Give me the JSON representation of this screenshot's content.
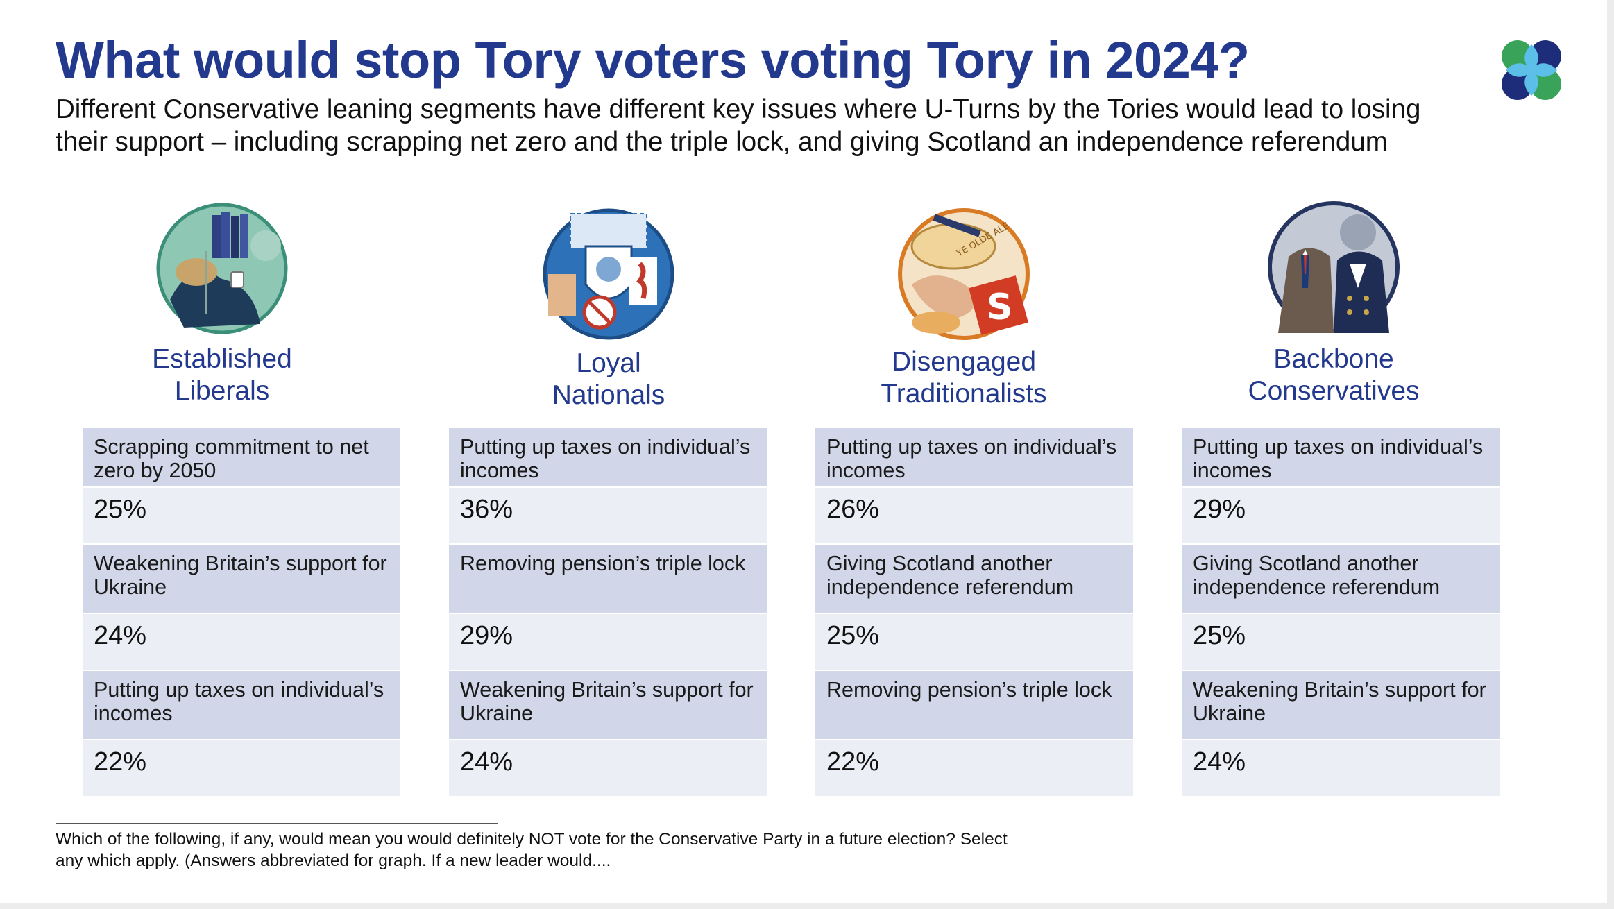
{
  "title": "What would stop Tory voters voting Tory in 2024?",
  "subtitle": "Different Conservative leaning segments have different key issues where U-Turns by the Tories would lead to losing their support – including scrapping net zero and the triple lock, and giving Scotland an independence referendum",
  "logo_icon": "four-petal-logo-icon",
  "colors": {
    "title": "#22398e",
    "issue_row": "#d1d6e8",
    "value_row": "#eceef5"
  },
  "segments": [
    {
      "name_line1": "Established",
      "name_line2": "Liberals",
      "icon": "armchair-reader-illustration",
      "rows": [
        {
          "issue": "Scrapping commitment to net zero by 2050",
          "value": "25%"
        },
        {
          "issue": "Weakening Britain’s support for Ukraine",
          "value": "24%"
        },
        {
          "issue": "Putting up taxes on individual’s incomes",
          "value": "22%"
        }
      ]
    },
    {
      "name_line1": "Loyal",
      "name_line2": "Nationals",
      "icon": "flag-and-shield-illustration",
      "rows": [
        {
          "issue": "Putting up taxes on individual’s incomes",
          "value": "36%"
        },
        {
          "issue": "Removing pension’s triple lock",
          "value": "29%"
        },
        {
          "issue": "Weakening Britain’s support for Ukraine",
          "value": "24%"
        }
      ]
    },
    {
      "name_line1": "Disengaged",
      "name_line2": "Traditionalists",
      "icon": "pub-and-tabloid-illustration",
      "ale_label": "YE OLDE ALE",
      "rows": [
        {
          "issue": "Putting up taxes on individual’s incomes",
          "value": "26%"
        },
        {
          "issue": "Giving Scotland another independence referendum",
          "value": "25%"
        },
        {
          "issue": "Removing pension’s triple lock",
          "value": "22%"
        }
      ]
    },
    {
      "name_line1": "Backbone",
      "name_line2": "Conservatives",
      "icon": "suited-couple-illustration",
      "rows": [
        {
          "issue": "Putting up taxes on individual’s incomes",
          "value": "29%"
        },
        {
          "issue": "Giving Scotland another independence referendum",
          "value": "25%"
        },
        {
          "issue": "Weakening Britain’s support for Ukraine",
          "value": "24%"
        }
      ]
    }
  ],
  "footnote": "Which of the following, if any, would mean you would definitely NOT vote for the Conservative Party in a future election? Select any which apply.  (Answers abbreviated for graph. If a new leader would...."
}
